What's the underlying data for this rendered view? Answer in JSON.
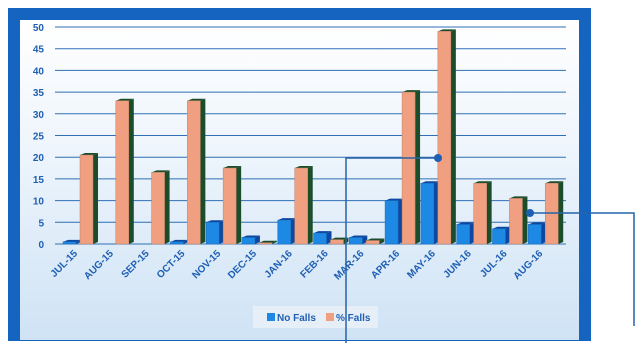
{
  "chart_data": {
    "type": "bar",
    "categories": [
      "JUL-15",
      "AUG-15",
      "SEP-15",
      "OCT-15",
      "NOV-15",
      "DEC-15",
      "JAN-16",
      "FEB-16",
      "MAR-16",
      "APR-16",
      "MAY-16",
      "JUN-16",
      "JUL-16",
      "AUG-16"
    ],
    "series": [
      {
        "name": "No Falls",
        "color": "#1e88e5",
        "values": [
          0.5,
          0,
          0,
          0.5,
          5,
          1.5,
          5.5,
          2.5,
          1.5,
          10,
          14,
          4.5,
          3.5,
          4.5
        ]
      },
      {
        "name": "% Falls",
        "color": "#f0a080",
        "values": [
          20.5,
          33,
          16.5,
          33,
          17.5,
          0.3,
          17.5,
          1,
          0.8,
          35,
          49,
          14,
          10.5,
          14
        ]
      }
    ],
    "ylim": [
      0,
      50
    ],
    "yticks": [
      0,
      5,
      10,
      15,
      20,
      25,
      30,
      35,
      40,
      45,
      50
    ],
    "grid": true,
    "legend": "bottom"
  }
}
